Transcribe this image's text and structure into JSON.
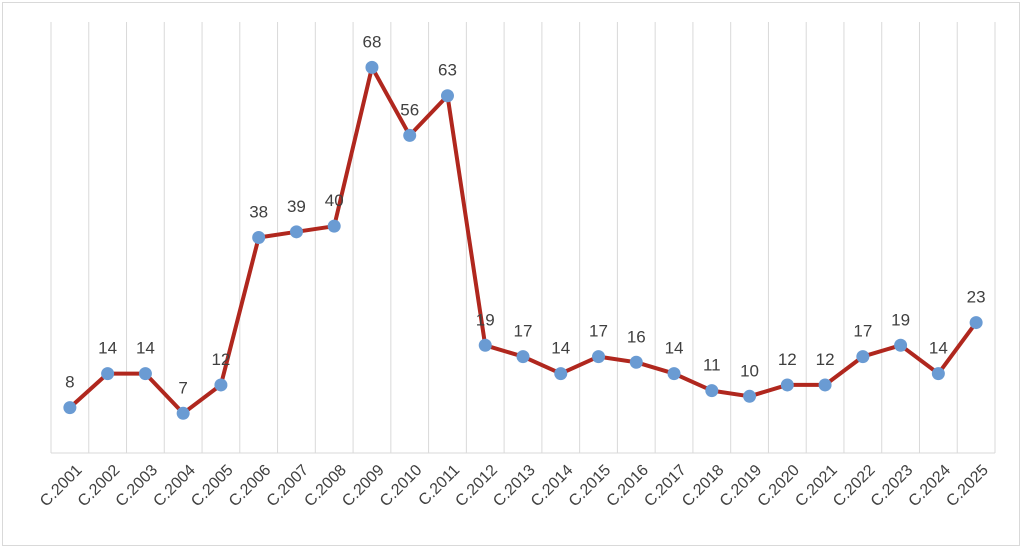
{
  "chart_data": {
    "type": "line",
    "title": "",
    "xlabel": "",
    "ylabel": "",
    "categories": [
      "C.2001",
      "C.2002",
      "C.2003",
      "C.2004",
      "C.2005",
      "C.2006",
      "C.2007",
      "C.2008",
      "C.2009",
      "C.2010",
      "C.2011",
      "C.2012",
      "C.2013",
      "C.2014",
      "C.2015",
      "C.2016",
      "C.2017",
      "C.2018",
      "C.2019",
      "C.2020",
      "C.2021",
      "C.2022",
      "C.2023",
      "C.2024",
      "C.2025"
    ],
    "values": [
      8,
      14,
      14,
      7,
      12,
      38,
      39,
      40,
      68,
      56,
      63,
      19,
      17,
      14,
      17,
      16,
      14,
      11,
      10,
      12,
      12,
      17,
      19,
      14,
      23
    ],
    "ylim": [
      0,
      76
    ],
    "grid": "vertical",
    "legend": "none",
    "colors": {
      "line": "#b0271e",
      "marker": "#6a9bd3",
      "grid": "#d9d9d9",
      "text": "#404040"
    }
  }
}
